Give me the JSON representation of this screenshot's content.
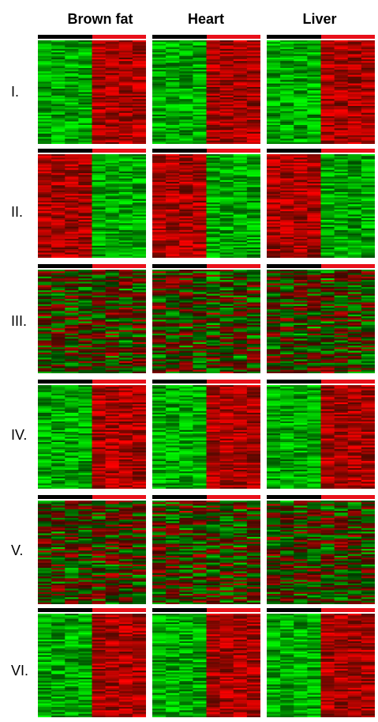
{
  "columns": [
    "Brown fat",
    "Heart",
    "Liver"
  ],
  "rows": [
    "I.",
    "II.",
    "III.",
    "IV.",
    "V.",
    "VI."
  ],
  "colors": {
    "control_bar": "#000000",
    "treatment_bar": "#e8101a",
    "low": "#00ff00",
    "mid": "#000000",
    "high": "#ff0000"
  },
  "heatmap_spec": {
    "sample_columns": 8,
    "control_columns": 4,
    "pattern_by_row": [
      "down-up",
      "up-down",
      "mixed",
      "down-up",
      "mixed",
      "down-up"
    ]
  }
}
